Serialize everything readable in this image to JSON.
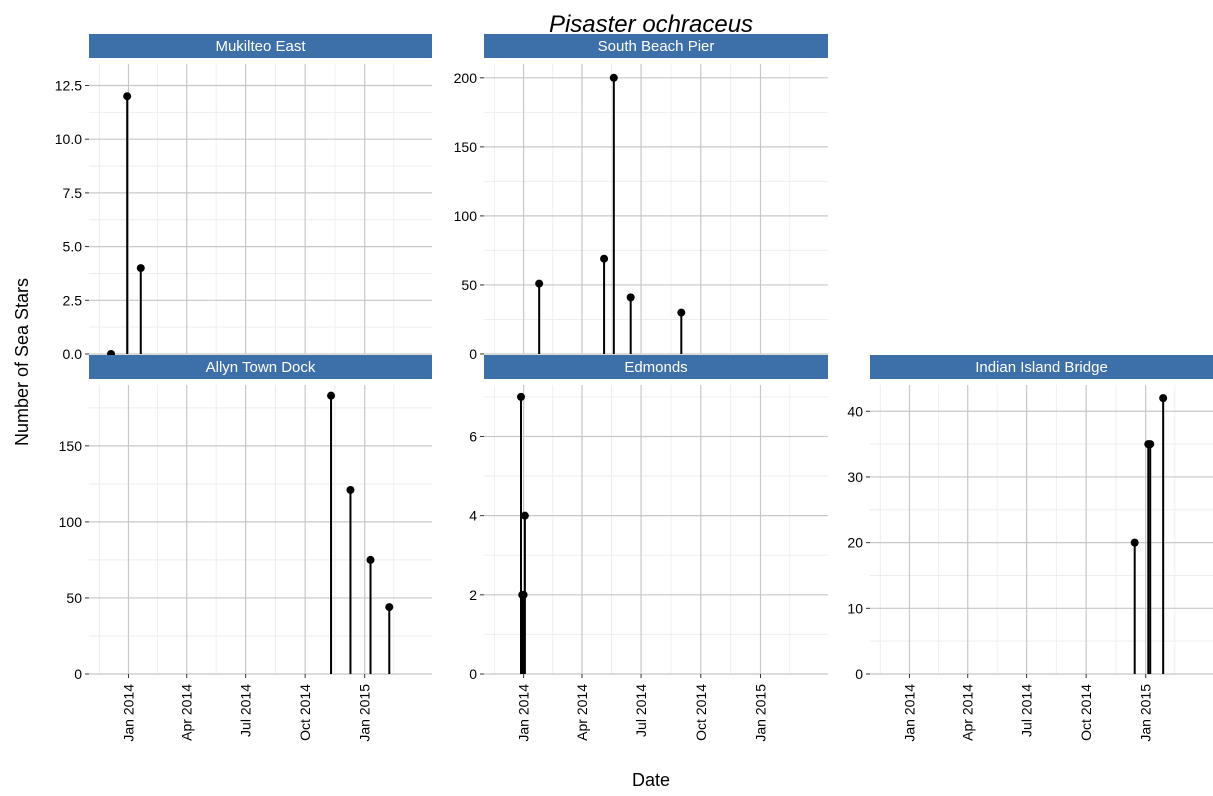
{
  "chart_data": {
    "type": "lollipop",
    "title": "Pisaster ochraceus",
    "xlabel": "Date",
    "ylabel": "Number of Sea Stars",
    "x_tick_labels": [
      "Jan 2014",
      "Apr 2014",
      "Jul 2014",
      "Oct 2014",
      "Jan 2015"
    ],
    "x_tick_dates": [
      "2014-01-01",
      "2014-04-01",
      "2014-07-01",
      "2014-10-01",
      "2015-01-01"
    ],
    "xlim": [
      "2013-11-01",
      "2015-04-15"
    ],
    "grid": true,
    "colors": {
      "strip_fill": "#3d6fa8",
      "grid_major": "#c8c8c8",
      "grid_minor": "#eeeeee",
      "mark": "#000000"
    },
    "facets": [
      {
        "label": "Mukilteo East",
        "ylim": [
          0,
          13.5
        ],
        "y_ticks": [
          0,
          2.5,
          5,
          7.5,
          10,
          12.5
        ],
        "y_tick_labels": [
          "0.0",
          "2.5",
          "5.0",
          "7.5",
          "10.0",
          "12.5"
        ],
        "points": [
          {
            "date": "2013-12-05",
            "value": 0
          },
          {
            "date": "2013-12-30",
            "value": 12
          },
          {
            "date": "2014-01-20",
            "value": 4
          }
        ]
      },
      {
        "label": "South Beach Pier",
        "ylim": [
          0,
          210
        ],
        "y_ticks": [
          0,
          50,
          100,
          150,
          200
        ],
        "y_tick_labels": [
          "0",
          "50",
          "100",
          "150",
          "200"
        ],
        "points": [
          {
            "date": "2014-01-25",
            "value": 51
          },
          {
            "date": "2014-05-05",
            "value": 69
          },
          {
            "date": "2014-05-20",
            "value": 200
          },
          {
            "date": "2014-06-15",
            "value": 41
          },
          {
            "date": "2014-09-01",
            "value": 30
          }
        ]
      },
      {
        "label": "Allyn Town Dock",
        "ylim": [
          0,
          190
        ],
        "y_ticks": [
          0,
          50,
          100,
          150
        ],
        "y_tick_labels": [
          "0",
          "50",
          "100",
          "150"
        ],
        "points": [
          {
            "date": "2014-11-10",
            "value": 183
          },
          {
            "date": "2014-12-10",
            "value": 121
          },
          {
            "date": "2015-01-10",
            "value": 75
          },
          {
            "date": "2015-02-08",
            "value": 44
          }
        ]
      },
      {
        "label": "Edmonds",
        "ylim": [
          0,
          7.3
        ],
        "y_ticks": [
          0,
          2,
          4,
          6
        ],
        "y_tick_labels": [
          "0",
          "2",
          "4",
          "6"
        ],
        "points": [
          {
            "date": "2013-12-28",
            "value": 7
          },
          {
            "date": "2013-12-30",
            "value": 2
          },
          {
            "date": "2014-01-01",
            "value": 2
          },
          {
            "date": "2014-01-03",
            "value": 4
          }
        ]
      },
      {
        "label": "Indian Island Bridge",
        "ylim": [
          0,
          44
        ],
        "y_ticks": [
          0,
          10,
          20,
          30,
          40
        ],
        "y_tick_labels": [
          "0",
          "10",
          "20",
          "30",
          "40"
        ],
        "points": [
          {
            "date": "2014-12-15",
            "value": 20
          },
          {
            "date": "2015-01-05",
            "value": 35
          },
          {
            "date": "2015-01-08",
            "value": 35
          },
          {
            "date": "2015-01-28",
            "value": 42
          }
        ]
      }
    ]
  }
}
